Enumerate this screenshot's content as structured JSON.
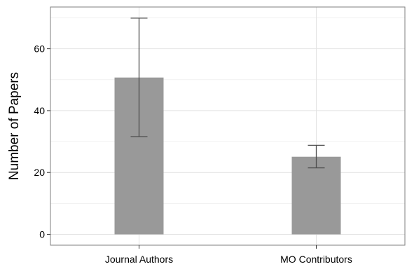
{
  "chart_data": {
    "type": "bar",
    "title": "",
    "xlabel": "",
    "ylabel": "Number of Papers",
    "categories": [
      "Journal Authors",
      "MO Contributors"
    ],
    "values": [
      50.7,
      25.1
    ],
    "error_low": [
      31.6,
      21.5
    ],
    "error_high": [
      69.9,
      28.8
    ],
    "ylim": [
      -3.5,
      73.5
    ],
    "yticks": [
      0,
      20,
      40,
      60
    ],
    "grid": true,
    "legend": "none",
    "colors": {
      "bar": "#999999",
      "errorbar": "#4d4d4d",
      "grid_major": "#e2e2e2",
      "grid_minor": "#f1f1f1",
      "panel_border": "#7f7f7f"
    }
  }
}
